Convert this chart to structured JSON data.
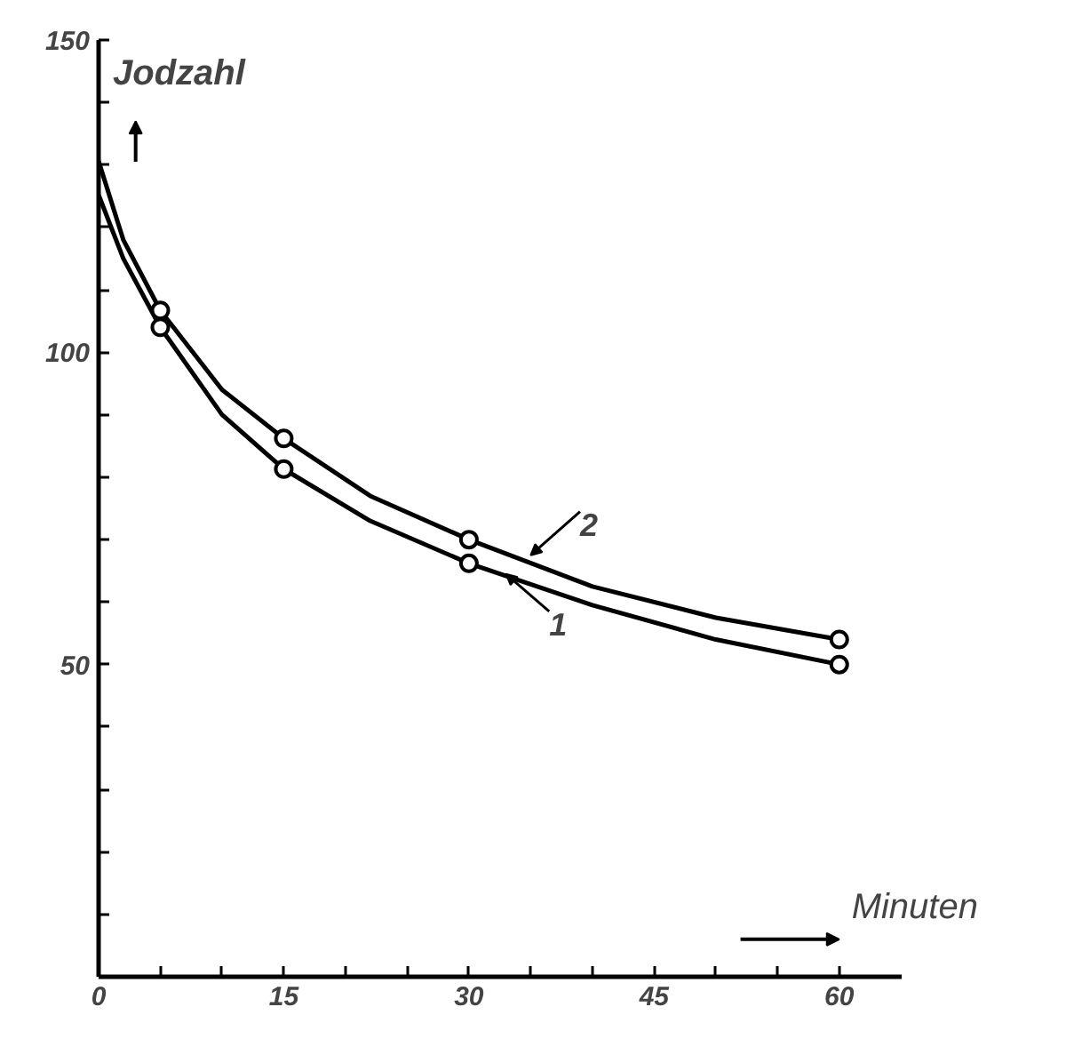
{
  "chart_data": {
    "type": "line",
    "xlabel": "Minuten",
    "ylabel": "Jodzahl",
    "xlim": [
      0,
      65
    ],
    "ylim": [
      0,
      150
    ],
    "xticks": [
      0,
      {
        "value": 5,
        "label": null
      },
      {
        "value": 10,
        "label": null
      },
      15,
      {
        "value": 20,
        "label": null
      },
      {
        "value": 25,
        "label": null
      },
      30,
      {
        "value": 35,
        "label": null
      },
      {
        "value": 40,
        "label": null
      },
      45,
      {
        "value": 50,
        "label": null
      },
      {
        "value": 55,
        "label": null
      },
      60
    ],
    "yticks": [
      {
        "value": 10,
        "label": null
      },
      {
        "value": 20,
        "label": null
      },
      {
        "value": 30,
        "label": null
      },
      {
        "value": 40,
        "label": null
      },
      50,
      {
        "value": 60,
        "label": null
      },
      {
        "value": 70,
        "label": null
      },
      {
        "value": 80,
        "label": null
      },
      {
        "value": 90,
        "label": null
      },
      100,
      {
        "value": 110,
        "label": null
      },
      {
        "value": 120,
        "label": null
      },
      {
        "value": 130,
        "label": null
      },
      {
        "value": 140,
        "label": null
      },
      150
    ],
    "grid": false,
    "line_style": "solid",
    "series": [
      {
        "type": "line",
        "marker": "none",
        "color": "#000000",
        "x": [
          0,
          2,
          5,
          10,
          15,
          22,
          30,
          40,
          50,
          60
        ],
        "values": [
          125.2,
          115,
          104,
          90,
          81.3,
          73,
          66.2,
          59.5,
          54,
          50
        ]
      },
      {
        "type": "line",
        "marker": "none",
        "color": "#000000",
        "x": [
          0,
          2,
          5,
          10,
          15,
          22,
          30,
          40,
          50,
          60
        ],
        "values": [
          130.6,
          118,
          106.7,
          94,
          86.2,
          77,
          70,
          62.5,
          57.5,
          54
        ]
      },
      {
        "type": "scatter",
        "marker": "circle",
        "color": "#000000",
        "x": [
          5,
          15,
          30,
          60
        ],
        "values": [
          104,
          81.3,
          66.2,
          50
        ]
      },
      {
        "type": "scatter",
        "marker": "circle",
        "color": "#000000",
        "x": [
          5,
          15,
          30,
          60
        ],
        "values": [
          106.7,
          86.2,
          70,
          54
        ]
      }
    ],
    "annotations": [
      {
        "text": "1",
        "x": 33,
        "y": 64.5
      },
      {
        "text": "2",
        "x": 35,
        "y": 67.5
      }
    ]
  }
}
